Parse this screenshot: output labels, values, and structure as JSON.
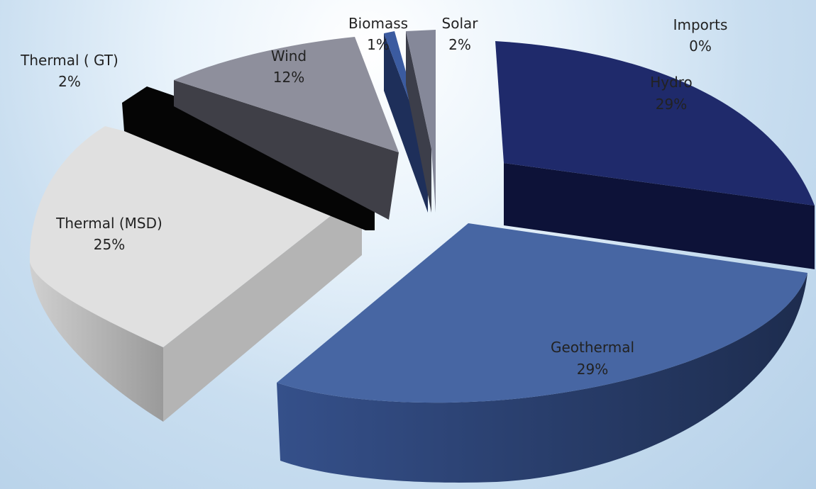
{
  "chart_data": {
    "type": "pie",
    "style": "3d-exploded",
    "slices": [
      {
        "name": "Hydro",
        "value": 29,
        "label": "29%",
        "color": "#1f2a6b",
        "side": "#0d1238"
      },
      {
        "name": "Geothermal",
        "value": 29,
        "label": "29%",
        "color": "#4766a3",
        "side": "#2b3f6b"
      },
      {
        "name": "Thermal (MSD)",
        "value": 25,
        "label": "25%",
        "color": "#e0e0e0",
        "side": "#a8a8a8"
      },
      {
        "name": "Thermal ( GT)",
        "value": 2,
        "label": "2%",
        "color": "#050505",
        "side": "#000000"
      },
      {
        "name": "Wind",
        "value": 12,
        "label": "12%",
        "color": "#8e8f9c",
        "side": "#46464f"
      },
      {
        "name": "Biomass",
        "value": 1,
        "label": "1%",
        "color": "#3b5ba0",
        "side": "#1e2f5a"
      },
      {
        "name": "Solar",
        "value": 2,
        "label": "2%",
        "color": "#858899",
        "side": "#4a4c58"
      },
      {
        "name": "Imports",
        "value": 0,
        "label": "0%",
        "color": "#6f7fb0",
        "side": "#3a4570"
      }
    ],
    "legend": "none"
  }
}
